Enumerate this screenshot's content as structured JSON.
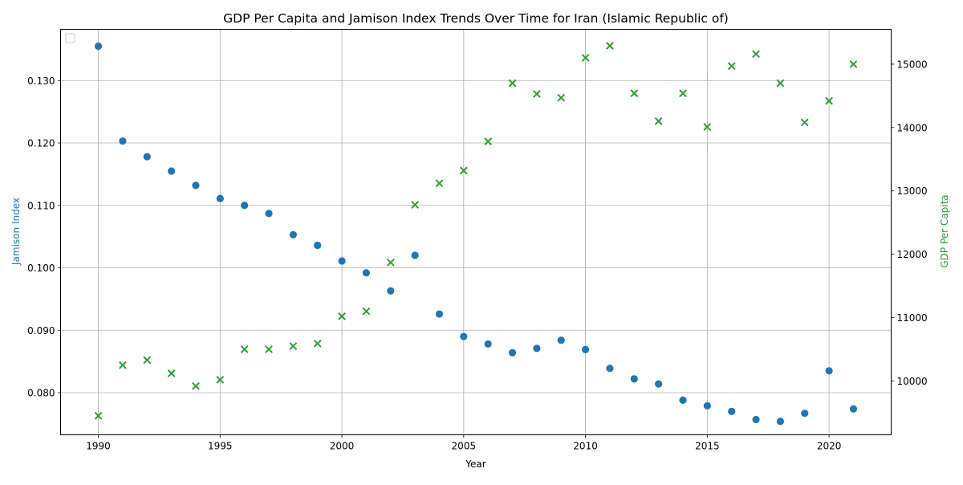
{
  "chart_data": {
    "type": "scatter",
    "title": "GDP Per Capita and Jamison Index Trends Over Time for Iran (Islamic Republic of)",
    "xlabel": "Year",
    "ylabel_left": "Jamison Index",
    "ylabel_right": "GDP Per Capita",
    "xlim": [
      1988.45,
      2022.55
    ],
    "ylim_left": [
      0.07325,
      0.1382
    ],
    "ylim_right": [
      9150,
      15550
    ],
    "grid": true,
    "legend_placement": "upper left",
    "x_ticks": [
      "1990",
      "1995",
      "2000",
      "2005",
      "2010",
      "2015",
      "2020"
    ],
    "x_tick_values": [
      1990,
      1995,
      2000,
      2005,
      2010,
      2015,
      2020
    ],
    "y_left_ticks": [
      "0.080",
      "0.090",
      "0.100",
      "0.110",
      "0.120",
      "0.130"
    ],
    "y_left_tick_values": [
      0.08,
      0.09,
      0.1,
      0.11,
      0.12,
      0.13
    ],
    "y_right_ticks": [
      "10000",
      "11000",
      "12000",
      "13000",
      "14000",
      "15000"
    ],
    "y_right_tick_values": [
      10000,
      11000,
      12000,
      13000,
      14000,
      15000
    ],
    "x": [
      1990,
      1991,
      1992,
      1993,
      1994,
      1995,
      1996,
      1997,
      1998,
      1999,
      2000,
      2001,
      2002,
      2003,
      2004,
      2005,
      2006,
      2007,
      2008,
      2009,
      2010,
      2011,
      2012,
      2013,
      2014,
      2015,
      2016,
      2017,
      2018,
      2019,
      2020,
      2021
    ],
    "series": [
      {
        "axis": "left",
        "marker": "circle",
        "color": "#1f77b4",
        "values": [
          0.1355,
          0.1203,
          0.1178,
          0.1155,
          0.1132,
          0.1111,
          0.11,
          0.1087,
          0.1053,
          0.1036,
          0.1011,
          0.0992,
          0.0963,
          0.102,
          0.0926,
          0.089,
          0.0878,
          0.0864,
          0.0871,
          0.0884,
          0.0869,
          0.0839,
          0.0822,
          0.0814,
          0.0788,
          0.0779,
          0.077,
          0.0757,
          0.0754,
          0.0767,
          0.0835,
          0.0774
        ]
      },
      {
        "axis": "right",
        "marker": "x",
        "color": "#2ca02c",
        "values": [
          9450,
          10250,
          10330,
          10120,
          9920,
          10020,
          10500,
          10500,
          10550,
          10590,
          11020,
          11100,
          11870,
          12780,
          13120,
          13320,
          13780,
          14700,
          14530,
          14470,
          15100,
          15290,
          14540,
          14100,
          14540,
          14010,
          14970,
          15160,
          14700,
          14080,
          14420,
          15000
        ]
      }
    ]
  }
}
